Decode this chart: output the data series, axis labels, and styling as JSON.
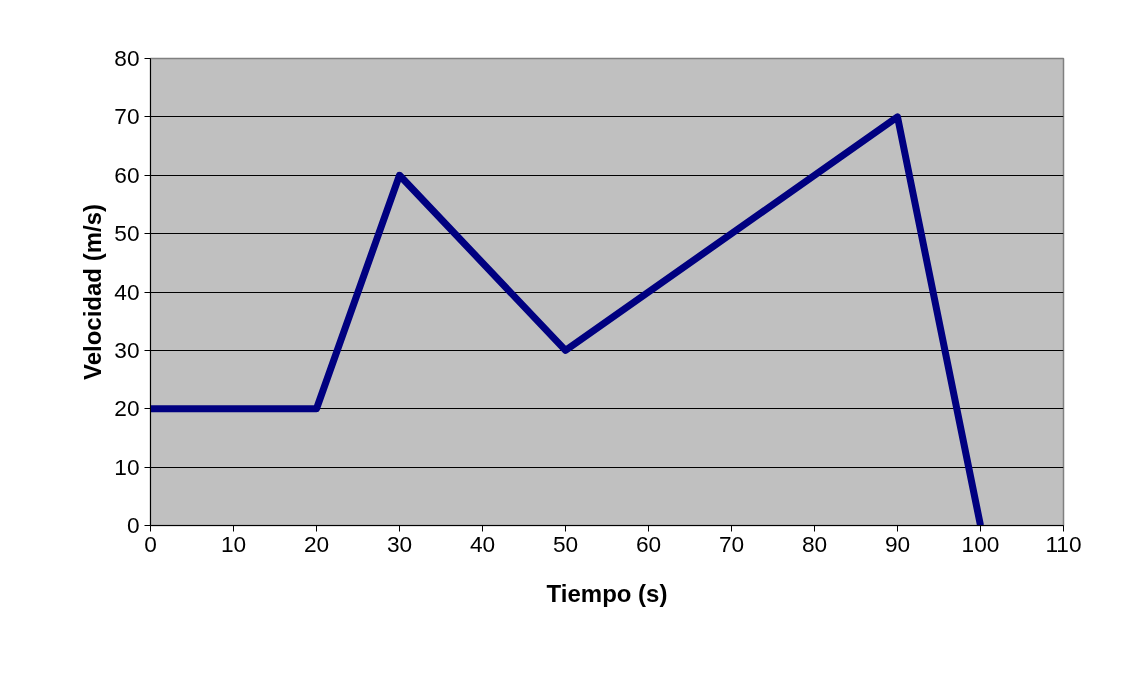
{
  "chart_data": {
    "type": "line",
    "xlabel": "Tiempo (s)",
    "ylabel": "Velocidad (m/s)",
    "x": [
      0,
      20,
      30,
      50,
      90,
      100
    ],
    "series": [
      {
        "color": "#000080",
        "values": [
          20,
          20,
          60,
          30,
          70,
          0
        ]
      }
    ],
    "xlim": [
      0,
      110
    ],
    "xticks": [
      0,
      10,
      20,
      30,
      40,
      50,
      60,
      70,
      80,
      90,
      100,
      110
    ],
    "ylim": [
      0,
      80
    ],
    "yticks": [
      0,
      10,
      20,
      30,
      40,
      50,
      60,
      70,
      80
    ],
    "grid": "y",
    "marker": "none",
    "line_style": "solid"
  }
}
